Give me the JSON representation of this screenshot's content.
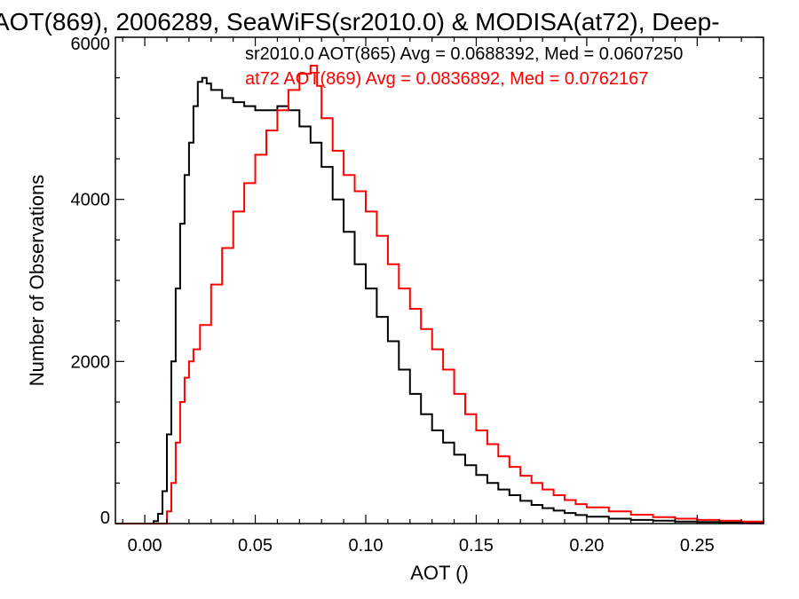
{
  "chart_data": {
    "type": "line",
    "title": "AOT(869), 2006289, SeaWiFS(sr2010.0) & MODISA(at72), Deep-",
    "xlabel": "AOT ()",
    "ylabel": "Number of Observations",
    "xlim": [
      -0.0133,
      0.28
    ],
    "ylim": [
      0,
      6000
    ],
    "x_ticks": [
      0.0,
      0.05,
      0.1,
      0.15,
      0.2,
      0.25
    ],
    "x_tick_labels": [
      "0.00",
      "0.05",
      "0.10",
      "0.15",
      "0.20",
      "0.25"
    ],
    "y_ticks": [
      0,
      2000,
      4000,
      6000
    ],
    "y_tick_labels": [
      "0",
      "2000",
      "4000",
      "6000"
    ],
    "grid": false,
    "style": "step",
    "series": [
      {
        "name": "sr2010.0",
        "color": "#000000",
        "annotation": "sr2010.0 AOT(865) Avg = 0.0688392, Med = 0.0607250",
        "points": [
          [
            -0.013,
            0
          ],
          [
            0.002,
            0
          ],
          [
            0.004,
            30
          ],
          [
            0.006,
            120
          ],
          [
            0.008,
            400
          ],
          [
            0.01,
            1100
          ],
          [
            0.012,
            2000
          ],
          [
            0.014,
            2900
          ],
          [
            0.016,
            3700
          ],
          [
            0.018,
            4300
          ],
          [
            0.02,
            4700
          ],
          [
            0.022,
            5150
          ],
          [
            0.024,
            5450
          ],
          [
            0.026,
            5500
          ],
          [
            0.028,
            5430
          ],
          [
            0.03,
            5350
          ],
          [
            0.035,
            5250
          ],
          [
            0.04,
            5200
          ],
          [
            0.045,
            5150
          ],
          [
            0.05,
            5100
          ],
          [
            0.055,
            5100
          ],
          [
            0.06,
            5150
          ],
          [
            0.065,
            5100
          ],
          [
            0.07,
            4900
          ],
          [
            0.075,
            4700
          ],
          [
            0.08,
            4400
          ],
          [
            0.085,
            4000
          ],
          [
            0.09,
            3600
          ],
          [
            0.095,
            3200
          ],
          [
            0.1,
            2900
          ],
          [
            0.105,
            2550
          ],
          [
            0.11,
            2250
          ],
          [
            0.115,
            1900
          ],
          [
            0.12,
            1600
          ],
          [
            0.125,
            1350
          ],
          [
            0.13,
            1150
          ],
          [
            0.135,
            1000
          ],
          [
            0.14,
            850
          ],
          [
            0.145,
            720
          ],
          [
            0.15,
            600
          ],
          [
            0.155,
            500
          ],
          [
            0.16,
            420
          ],
          [
            0.165,
            350
          ],
          [
            0.17,
            280
          ],
          [
            0.175,
            230
          ],
          [
            0.18,
            190
          ],
          [
            0.185,
            160
          ],
          [
            0.19,
            130
          ],
          [
            0.195,
            105
          ],
          [
            0.2,
            85
          ],
          [
            0.21,
            60
          ],
          [
            0.22,
            45
          ],
          [
            0.23,
            35
          ],
          [
            0.24,
            25
          ],
          [
            0.25,
            20
          ],
          [
            0.26,
            15
          ],
          [
            0.27,
            10
          ],
          [
            0.28,
            5
          ]
        ]
      },
      {
        "name": "at72",
        "color": "#ff0000",
        "annotation": "at72 AOT(869) Avg = 0.0836892, Med = 0.0762167",
        "points": [
          [
            -0.013,
            0
          ],
          [
            0.008,
            0
          ],
          [
            0.01,
            150
          ],
          [
            0.012,
            500
          ],
          [
            0.014,
            1000
          ],
          [
            0.016,
            1500
          ],
          [
            0.018,
            1800
          ],
          [
            0.02,
            2000
          ],
          [
            0.022,
            2150
          ],
          [
            0.025,
            2450
          ],
          [
            0.03,
            2950
          ],
          [
            0.035,
            3400
          ],
          [
            0.04,
            3850
          ],
          [
            0.045,
            4200
          ],
          [
            0.05,
            4550
          ],
          [
            0.055,
            4850
          ],
          [
            0.06,
            5100
          ],
          [
            0.065,
            5350
          ],
          [
            0.07,
            5550
          ],
          [
            0.075,
            5650
          ],
          [
            0.078,
            5400
          ],
          [
            0.08,
            5000
          ],
          [
            0.085,
            4600
          ],
          [
            0.09,
            4300
          ],
          [
            0.095,
            4100
          ],
          [
            0.1,
            3850
          ],
          [
            0.105,
            3550
          ],
          [
            0.11,
            3200
          ],
          [
            0.115,
            2900
          ],
          [
            0.12,
            2650
          ],
          [
            0.125,
            2400
          ],
          [
            0.13,
            2150
          ],
          [
            0.135,
            1900
          ],
          [
            0.14,
            1600
          ],
          [
            0.145,
            1350
          ],
          [
            0.15,
            1150
          ],
          [
            0.155,
            980
          ],
          [
            0.16,
            830
          ],
          [
            0.165,
            700
          ],
          [
            0.17,
            590
          ],
          [
            0.175,
            500
          ],
          [
            0.18,
            420
          ],
          [
            0.185,
            350
          ],
          [
            0.19,
            290
          ],
          [
            0.195,
            240
          ],
          [
            0.2,
            200
          ],
          [
            0.21,
            150
          ],
          [
            0.22,
            110
          ],
          [
            0.23,
            80
          ],
          [
            0.24,
            60
          ],
          [
            0.25,
            45
          ],
          [
            0.26,
            35
          ],
          [
            0.27,
            25
          ],
          [
            0.28,
            15
          ]
        ]
      }
    ]
  }
}
